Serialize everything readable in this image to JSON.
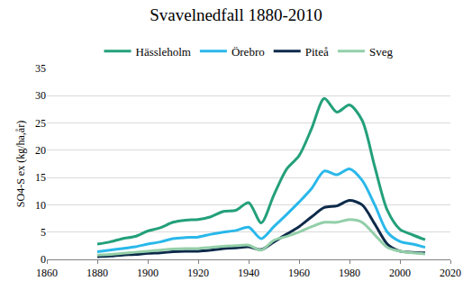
{
  "chart_data": {
    "type": "line",
    "title": "Svavelnedfall 1880-2010",
    "y_label": "SO4-S ex (kg/ha,år)",
    "x": [
      1880,
      1885,
      1890,
      1895,
      1900,
      1905,
      1910,
      1915,
      1920,
      1925,
      1930,
      1935,
      1940,
      1945,
      1950,
      1955,
      1960,
      1965,
      1970,
      1975,
      1980,
      1985,
      1990,
      1995,
      2000,
      2005,
      2010
    ],
    "series": [
      {
        "name": "Hässleholm",
        "color": "#23a07a",
        "values": [
          2.8,
          3.2,
          3.8,
          4.2,
          5.2,
          5.8,
          6.8,
          7.2,
          7.3,
          7.8,
          8.8,
          9.0,
          10.4,
          6.7,
          11.8,
          16.5,
          19.0,
          24.0,
          29.5,
          27.0,
          28.3,
          25.5,
          17.0,
          9.0,
          5.5,
          4.5,
          3.6
        ]
      },
      {
        "name": "Örebro",
        "color": "#2ab8ea",
        "values": [
          1.4,
          1.7,
          2.0,
          2.3,
          2.8,
          3.2,
          3.8,
          4.0,
          4.1,
          4.6,
          5.0,
          5.3,
          5.9,
          3.8,
          6.0,
          8.2,
          10.5,
          13.0,
          16.2,
          15.5,
          16.6,
          14.5,
          10.0,
          5.0,
          3.3,
          2.8,
          2.2
        ]
      },
      {
        "name": "Piteå",
        "color": "#0d2a4a",
        "values": [
          0.5,
          0.6,
          0.8,
          0.9,
          1.1,
          1.2,
          1.4,
          1.5,
          1.5,
          1.7,
          2.0,
          2.1,
          2.3,
          1.8,
          3.2,
          4.6,
          6.0,
          7.8,
          9.5,
          9.8,
          10.8,
          10.0,
          6.5,
          2.8,
          1.5,
          1.3,
          1.2
        ]
      },
      {
        "name": "Sveg",
        "color": "#93cfa9",
        "values": [
          0.8,
          0.9,
          1.1,
          1.3,
          1.5,
          1.7,
          1.9,
          2.0,
          2.0,
          2.2,
          2.4,
          2.5,
          2.6,
          1.7,
          3.5,
          4.2,
          5.0,
          6.0,
          6.8,
          6.8,
          7.3,
          6.8,
          4.5,
          2.2,
          1.5,
          1.2,
          1.0
        ]
      }
    ],
    "xlim": [
      1860,
      2020
    ],
    "xticks": [
      1860,
      1880,
      1900,
      1920,
      1940,
      1960,
      1980,
      2000,
      2020
    ],
    "ylim": [
      0,
      35
    ],
    "yticks": [
      0,
      5,
      10,
      15,
      20,
      25,
      30,
      35
    ],
    "grid": true,
    "legend": "top"
  }
}
